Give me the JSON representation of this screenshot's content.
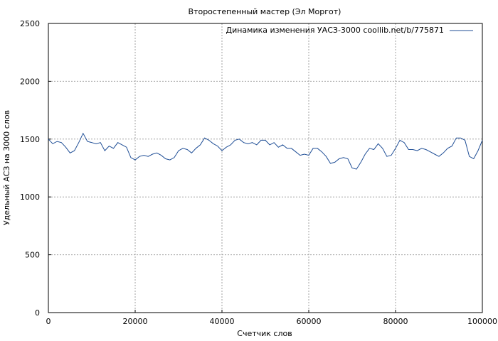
{
  "chart_data": {
    "type": "line",
    "title": "Второстепенный мастер (Эл Моргот)",
    "xlabel": "Счетчик слов",
    "ylabel": "Удельный АСЗ на 3000 слов",
    "xlim": [
      0,
      100000
    ],
    "ylim": [
      0,
      2500
    ],
    "xticks": [
      0,
      20000,
      40000,
      60000,
      80000,
      100000
    ],
    "yticks": [
      0,
      500,
      1000,
      1500,
      2000,
      2500
    ],
    "grid": true,
    "legend_position": "top-right",
    "series": [
      {
        "name": "Динамика изменения УАСЗ-3000 coollib.net/b/775871",
        "color": "#1f4e96",
        "x": [
          0,
          1000,
          2000,
          3000,
          4000,
          5000,
          6000,
          7000,
          8000,
          9000,
          10000,
          11000,
          12000,
          13000,
          14000,
          15000,
          16000,
          17000,
          18000,
          19000,
          20000,
          21000,
          22000,
          23000,
          24000,
          25000,
          26000,
          27000,
          28000,
          29000,
          30000,
          31000,
          32000,
          33000,
          34000,
          35000,
          36000,
          37000,
          38000,
          39000,
          40000,
          41000,
          42000,
          43000,
          44000,
          45000,
          46000,
          47000,
          48000,
          49000,
          50000,
          51000,
          52000,
          53000,
          54000,
          55000,
          56000,
          57000,
          58000,
          59000,
          60000,
          61000,
          62000,
          63000,
          64000,
          65000,
          66000,
          67000,
          68000,
          69000,
          70000,
          71000,
          72000,
          73000,
          74000,
          75000,
          76000,
          77000,
          78000,
          79000,
          80000,
          81000,
          82000,
          83000,
          84000,
          85000,
          86000,
          87000,
          88000,
          89000,
          90000,
          91000,
          92000,
          93000,
          94000,
          95000,
          96000,
          97000,
          98000,
          99000,
          100000
        ],
        "values": [
          1500,
          1460,
          1480,
          1470,
          1430,
          1380,
          1400,
          1470,
          1550,
          1480,
          1470,
          1460,
          1470,
          1400,
          1440,
          1420,
          1470,
          1450,
          1430,
          1340,
          1320,
          1350,
          1360,
          1350,
          1370,
          1380,
          1360,
          1330,
          1320,
          1340,
          1400,
          1420,
          1410,
          1380,
          1420,
          1450,
          1510,
          1490,
          1460,
          1440,
          1400,
          1430,
          1450,
          1490,
          1500,
          1470,
          1460,
          1470,
          1450,
          1490,
          1490,
          1450,
          1470,
          1430,
          1450,
          1420,
          1420,
          1390,
          1360,
          1370,
          1360,
          1420,
          1420,
          1390,
          1350,
          1290,
          1300,
          1330,
          1340,
          1330,
          1250,
          1240,
          1300,
          1370,
          1420,
          1410,
          1460,
          1420,
          1350,
          1360,
          1420,
          1490,
          1470,
          1410,
          1410,
          1400,
          1420,
          1410,
          1390,
          1370,
          1350,
          1380,
          1420,
          1440,
          1510,
          1510,
          1490,
          1350,
          1330,
          1400,
          1490
        ]
      }
    ]
  }
}
